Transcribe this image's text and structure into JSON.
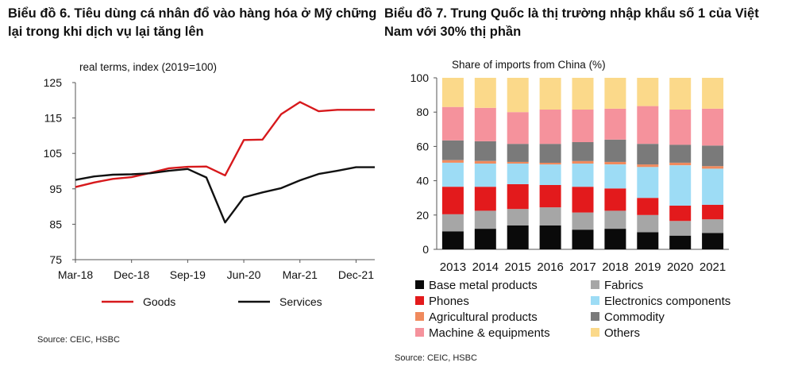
{
  "left_title": "Biểu đồ 6. Tiêu dùng cá nhân đổ vào hàng hóa ở Mỹ chững lại trong khi dịch vụ lại tăng lên",
  "right_title": "Biểu đồ 7. Trung Quốc là thị trường nhập khẩu số 1 của Việt Nam với 30% thị phần",
  "left_source": "Source: CEIC, HSBC",
  "right_source": "Source: CEIC, HSBC",
  "colors": {
    "goods": "#d7191c",
    "services": "#111111",
    "base_metal": "#0a0a0a",
    "fabrics": "#a6a6a6",
    "phones": "#e31a1c",
    "electronics": "#9ddcf5",
    "agricultural": "#f08a5d",
    "commodity": "#7a7a7a",
    "machine": "#f5929c",
    "others": "#fbd98a"
  },
  "chart_data": [
    {
      "type": "line",
      "title": "real terms,  index (2019=100)",
      "xlabel": "",
      "ylabel": "",
      "ylim": [
        75,
        125
      ],
      "yticks": [
        "75",
        "85",
        "95",
        "105",
        "115",
        "125"
      ],
      "xticks": [
        "Mar-18",
        "Dec-18",
        "Sep-19",
        "Jun-20",
        "Mar-21",
        "Dec-21"
      ],
      "xdomain": [
        0,
        48
      ],
      "xtick_positions": [
        0,
        9,
        18,
        27,
        36,
        45
      ],
      "series": [
        {
          "name": "Goods",
          "color_key": "goods",
          "x": [
            0,
            3,
            6,
            9,
            12,
            15,
            18,
            21,
            24,
            27,
            30,
            33,
            36,
            39,
            42,
            45,
            48
          ],
          "y": [
            95.5,
            96.8,
            97.8,
            98.3,
            99.5,
            100.8,
            101.2,
            101.3,
            98.8,
            108.8,
            108.9,
            116.1,
            119.5,
            116.9,
            117.3,
            117.3,
            117.3
          ]
        },
        {
          "name": "Services",
          "color_key": "services",
          "x": [
            0,
            3,
            6,
            9,
            12,
            15,
            18,
            21,
            24,
            27,
            30,
            33,
            36,
            39,
            42,
            45,
            48
          ],
          "y": [
            97.5,
            98.5,
            99.0,
            99.1,
            99.4,
            100.1,
            100.6,
            98.2,
            85.5,
            92.6,
            94.0,
            95.2,
            97.4,
            99.2,
            100.1,
            101.1,
            101.1
          ]
        }
      ]
    },
    {
      "type": "bar",
      "stacked": true,
      "title": "Share of imports  from China  (%)",
      "xlabel": "",
      "ylabel": "",
      "ylim": [
        0,
        100
      ],
      "yticks": [
        "0",
        "20",
        "40",
        "60",
        "80",
        "100"
      ],
      "categories": [
        "2013",
        "2014",
        "2015",
        "2016",
        "2017",
        "2018",
        "2019",
        "2020",
        "2021"
      ],
      "series": [
        {
          "name": "Base metal products",
          "color_key": "base_metal",
          "values": [
            10.5,
            12,
            14,
            14,
            11.5,
            12,
            10,
            8,
            9.5
          ]
        },
        {
          "name": "Fabrics",
          "color_key": "fabrics",
          "values": [
            10,
            10.5,
            9.5,
            10.5,
            10,
            10.5,
            10,
            8.5,
            8
          ]
        },
        {
          "name": "Phones",
          "color_key": "phones",
          "values": [
            16,
            14,
            14.5,
            13,
            15,
            13,
            10,
            9,
            8.5
          ]
        },
        {
          "name": "Electronics components",
          "color_key": "electronics",
          "values": [
            14,
            13.5,
            12,
            12,
            13.5,
            14,
            18,
            23.5,
            21
          ]
        },
        {
          "name": "Agricultural products",
          "color_key": "agricultural",
          "values": [
            1.5,
            1.5,
            1,
            1,
            1.5,
            1.5,
            1.5,
            1.5,
            1.5
          ]
        },
        {
          "name": "Commodity",
          "color_key": "commodity",
          "values": [
            11.5,
            11.5,
            10.5,
            11,
            11,
            13,
            12,
            10.5,
            12
          ]
        },
        {
          "name": "Machine & equipments",
          "color_key": "machine",
          "values": [
            19.5,
            19.5,
            18.5,
            20,
            19,
            18,
            22,
            20.5,
            21.5
          ]
        },
        {
          "name": "Others",
          "color_key": "others",
          "values": [
            17,
            17.5,
            20,
            18.5,
            18.5,
            18,
            16.5,
            18.5,
            18
          ]
        }
      ]
    }
  ]
}
